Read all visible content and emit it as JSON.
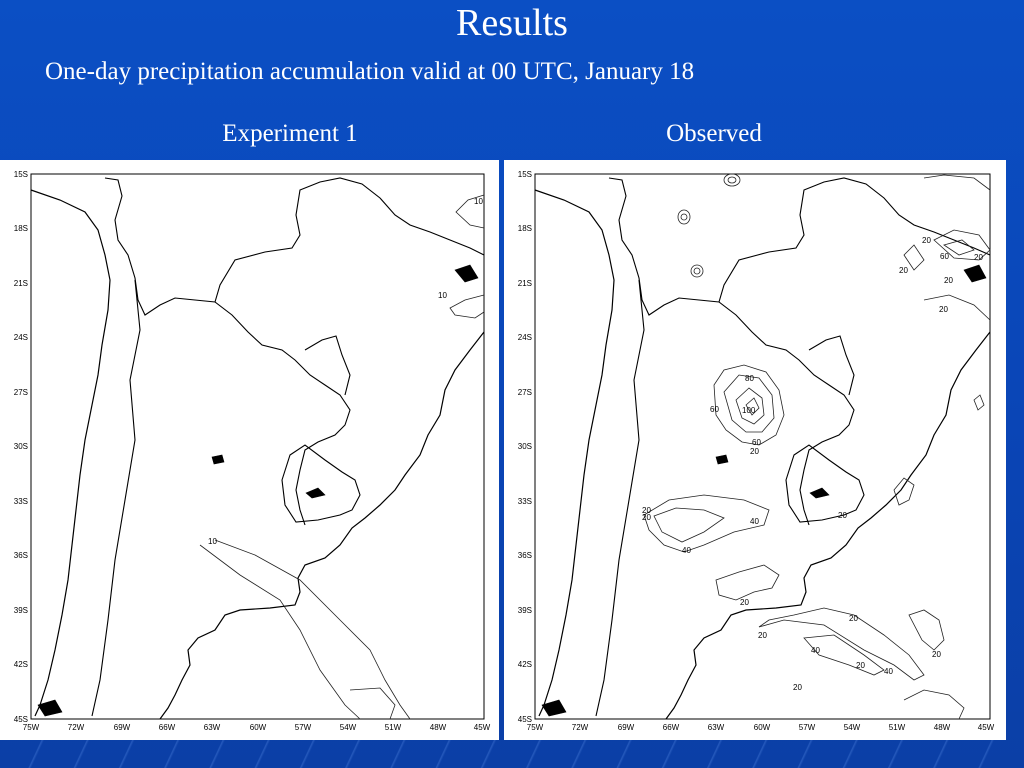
{
  "slide": {
    "title": "Results",
    "subtitle": "One-day precipitation accumulation valid at 00 UTC, January 18",
    "colors": {
      "background": "#0b4fc4",
      "text": "#ffffff",
      "map_line": "#000000"
    }
  },
  "panels": [
    {
      "label": "Experiment 1",
      "contour_labels": [
        "10",
        "10",
        "10"
      ]
    },
    {
      "label": "Observed",
      "contour_labels": [
        "80",
        "100",
        "60",
        "60",
        "20",
        "20",
        "20",
        "40",
        "40",
        "20",
        "20",
        "20",
        "40",
        "20",
        "20",
        "40",
        "20",
        "20",
        "20",
        "60",
        "20",
        "20",
        "20",
        "20"
      ]
    }
  ],
  "map": {
    "lat_ticks": [
      "15S",
      "18S",
      "21S",
      "24S",
      "27S",
      "30S",
      "33S",
      "36S",
      "39S",
      "42S",
      "45S"
    ],
    "lon_ticks": [
      "75W",
      "72W",
      "69W",
      "66W",
      "63W",
      "60W",
      "57W",
      "54W",
      "51W",
      "48W",
      "45W"
    ]
  }
}
